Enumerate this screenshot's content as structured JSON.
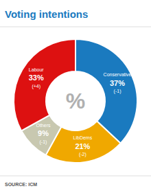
{
  "chart_data": {
    "type": "donut",
    "title": "Voting intentions",
    "categories": [
      "Conservative",
      "LibDems",
      "Others",
      "Labour"
    ],
    "values": [
      37,
      21,
      9,
      33
    ],
    "value_labels": [
      "37%",
      "21%",
      "9%",
      "33%"
    ],
    "changes": [
      "(-1)",
      "(-2)",
      "(-1)",
      "(+4)"
    ],
    "colors": [
      "#1a7abf",
      "#f0a800",
      "#c8c8b0",
      "#dd1111"
    ],
    "data_labels": true,
    "center_text": "%",
    "source": "SOURCE: ICM"
  }
}
